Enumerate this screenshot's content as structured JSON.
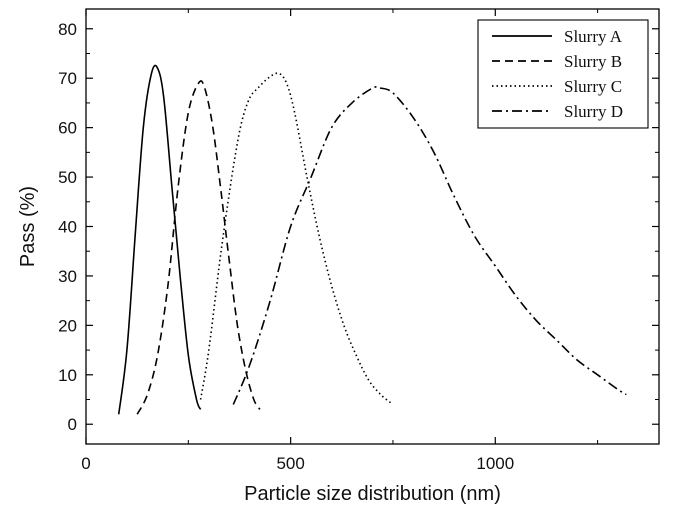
{
  "chart_data": {
    "type": "line",
    "title": "",
    "xlabel": "Particle size distribution (nm)",
    "ylabel": "Pass (%)",
    "xlim": [
      0,
      1400
    ],
    "ylim": [
      -4,
      84
    ],
    "x_ticks": [
      0,
      500,
      1000
    ],
    "y_ticks": [
      0,
      10,
      20,
      30,
      40,
      50,
      60,
      70,
      80
    ],
    "grid": false,
    "legend_position": "top-right",
    "series": [
      {
        "name": "Slurry A",
        "line_style": "solid",
        "color": "#000000",
        "x": [
          80,
          100,
          120,
          140,
          160,
          175,
          190,
          210,
          230,
          250,
          270,
          280
        ],
        "y": [
          2,
          15,
          38,
          60,
          71,
          72,
          66,
          48,
          30,
          14,
          5,
          3
        ]
      },
      {
        "name": "Slurry B",
        "line_style": "dashed",
        "color": "#000000",
        "x": [
          125,
          150,
          175,
          200,
          225,
          250,
          275,
          290,
          310,
          330,
          350,
          370,
          390,
          410,
          425
        ],
        "y": [
          2,
          6,
          14,
          28,
          48,
          63,
          69,
          68,
          60,
          47,
          33,
          20,
          11,
          5,
          3
        ]
      },
      {
        "name": "Slurry C",
        "line_style": "dotted",
        "color": "#000000",
        "x": [
          280,
          300,
          330,
          360,
          380,
          400,
          420,
          445,
          470,
          490,
          510,
          540,
          570,
          600,
          630,
          660,
          690,
          720,
          750
        ],
        "y": [
          5,
          15,
          35,
          52,
          61,
          66,
          68,
          70,
          71,
          69,
          63,
          50,
          38,
          28,
          20,
          14,
          9,
          6,
          4
        ]
      },
      {
        "name": "Slurry D",
        "line_style": "dashdot",
        "color": "#000000",
        "x": [
          360,
          400,
          450,
          500,
          550,
          600,
          650,
          700,
          720,
          750,
          800,
          850,
          900,
          950,
          1000,
          1050,
          1100,
          1150,
          1200,
          1250,
          1300,
          1320
        ],
        "y": [
          4,
          12,
          25,
          40,
          50,
          60,
          65,
          68,
          68,
          67,
          62,
          55,
          46,
          38,
          32,
          26,
          21,
          17,
          13,
          10,
          7,
          6
        ]
      }
    ]
  }
}
